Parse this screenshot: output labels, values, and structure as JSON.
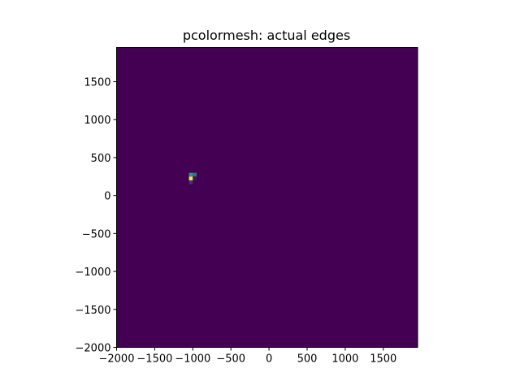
{
  "chart_data": {
    "type": "heatmap",
    "title": "pcolormesh: actual edges",
    "xlabel": "",
    "ylabel": "",
    "xlim": [
      -2000,
      1950
    ],
    "ylim": [
      -2000,
      1950
    ],
    "xticks": [
      -2000,
      -1500,
      -1000,
      -500,
      0,
      500,
      1000,
      1500
    ],
    "yticks": [
      -2000,
      -1500,
      -1000,
      -500,
      0,
      500,
      1000,
      1500
    ],
    "xtick_labels": [
      "−2000",
      "−1500",
      "−1000",
      "−500",
      "0",
      "500",
      "1000",
      "1500"
    ],
    "ytick_labels": [
      "−2000",
      "−1500",
      "−1000",
      "−500",
      "0",
      "500",
      "1000",
      "1500"
    ],
    "colormap": "viridis",
    "background_value": 0,
    "background_color": "#440154",
    "cell_size": 50,
    "cells": [
      {
        "x0": -1050,
        "x1": -1000,
        "y0": 250,
        "y1": 300,
        "value": 0.55
      },
      {
        "x0": -1000,
        "x1": -950,
        "y0": 250,
        "y1": 300,
        "value": 0.4
      },
      {
        "x0": -1050,
        "x1": -1000,
        "y0": 200,
        "y1": 250,
        "value": 1.0
      },
      {
        "x0": -1000,
        "x1": -950,
        "y0": 200,
        "y1": 250,
        "value": 0.05
      },
      {
        "x0": -1050,
        "x1": -1000,
        "y0": 150,
        "y1": 200,
        "value": 0.15
      }
    ]
  }
}
